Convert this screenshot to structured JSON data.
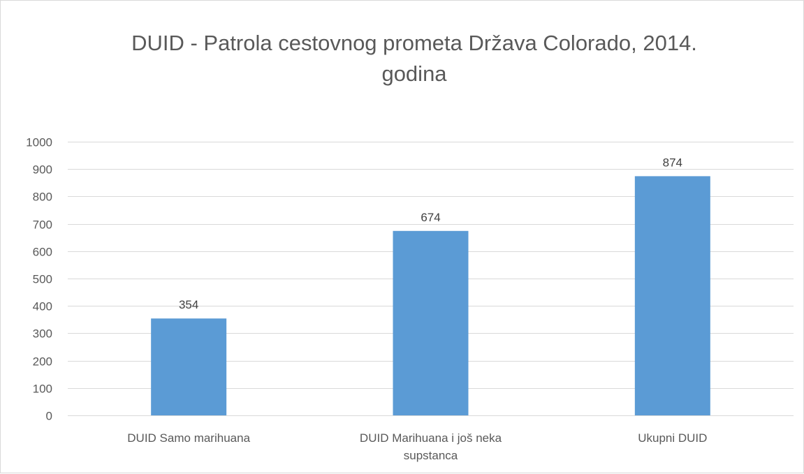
{
  "chart_data": {
    "type": "bar",
    "title_lines": [
      "DUID - Patrola cestovnog prometa Država Colorado, 2014.",
      "godina"
    ],
    "categories": [
      [
        "DUID Samo marihuana"
      ],
      [
        "DUID Marihuana i još neka",
        "supstanca"
      ],
      [
        "Ukupni DUID"
      ]
    ],
    "values": [
      354,
      674,
      874
    ],
    "ylim": [
      0,
      1000
    ],
    "y_ticks": [
      "0",
      "100",
      "200",
      "300",
      "400",
      "500",
      "600",
      "700",
      "800",
      "900",
      "1000"
    ],
    "grid": true,
    "legend": "none",
    "bar_color": "#5b9bd5",
    "grid_color": "#d9d9d9",
    "text_color": "#595959"
  }
}
